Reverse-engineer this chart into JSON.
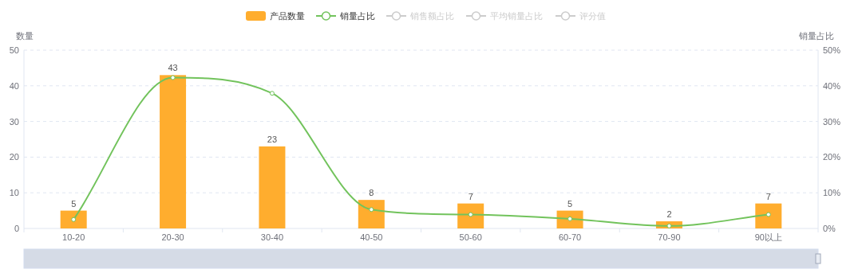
{
  "chart_data": {
    "type": "bar",
    "ylabel": "数量",
    "y2label": "销量占比",
    "categories": [
      "10-20",
      "20-30",
      "30-40",
      "40-50",
      "50-60",
      "60-70",
      "70-90",
      "90以上"
    ],
    "series": [
      {
        "name": "产品数量",
        "color": "#ffad2e",
        "values": [
          5,
          43,
          23,
          8,
          7,
          5,
          2,
          7
        ],
        "value_labels": [
          "5",
          "43",
          "23",
          "8",
          "7",
          "5",
          "2",
          "7"
        ]
      },
      {
        "name": "销量占比",
        "type": "line",
        "axis": "y2",
        "color": "#72c35c",
        "marker": "circle",
        "values": [
          2.5,
          42.3,
          37.9,
          5.3,
          3.9,
          2.7,
          0.7,
          3.9
        ]
      },
      {
        "name": "销售额占比",
        "type": "line",
        "color": "#cccccc",
        "marker": "circle",
        "values": [
          null,
          null,
          null,
          null,
          null,
          null,
          null,
          null
        ]
      },
      {
        "name": "平均销量占比",
        "type": "line",
        "color": "#cccccc",
        "marker": "circle",
        "values": [
          null,
          null,
          null,
          null,
          null,
          null,
          null,
          null
        ]
      },
      {
        "name": "评分值",
        "type": "line",
        "color": "#cccccc",
        "marker": "circle",
        "values": [
          null,
          null,
          null,
          null,
          null,
          null,
          null,
          null
        ]
      }
    ],
    "ylim": [
      0,
      50
    ],
    "yticks": [
      0,
      10,
      20,
      30,
      40,
      50
    ],
    "y2lim": [
      0,
      50
    ],
    "y2ticks": [
      {
        "value": 0,
        "label": "0%"
      },
      {
        "value": 10,
        "label": "10%"
      },
      {
        "value": 20,
        "label": "20%"
      },
      {
        "value": 30,
        "label": "30%"
      },
      {
        "value": 40,
        "label": "40%"
      },
      {
        "value": 50,
        "label": "50%"
      }
    ],
    "grid": "y",
    "legend": "top"
  }
}
